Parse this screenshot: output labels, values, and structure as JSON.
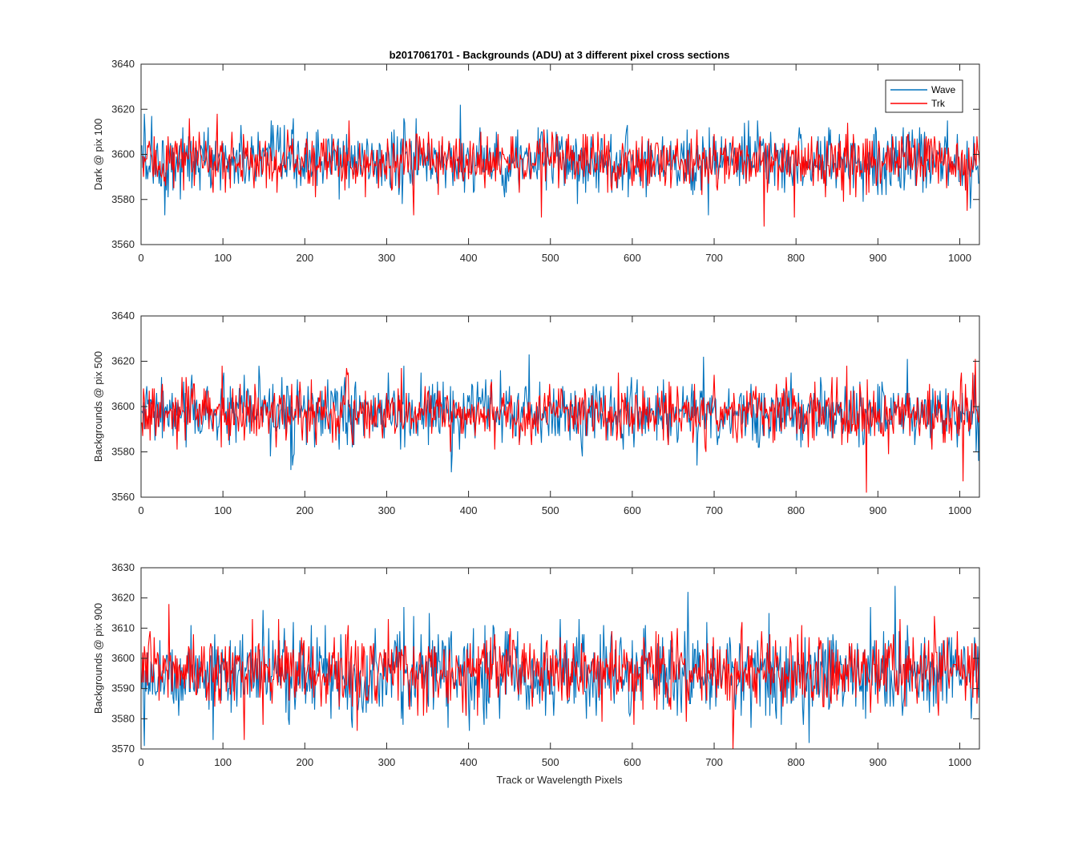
{
  "title": "b2017061701 - Backgrounds (ADU) at 3 different pixel cross sections",
  "xlabel": "Track or Wavelength Pixels",
  "colors": {
    "wave": "#0072bd",
    "trk": "#ff0000",
    "axes": "#262626"
  },
  "legend": {
    "position": "top-right",
    "entries": [
      "Wave",
      "Trk"
    ]
  },
  "chart_data": [
    {
      "type": "line",
      "title": "b2017061701 - Backgrounds (ADU) at 3 different pixel cross sections",
      "xlabel": "",
      "ylabel": "Dark @ pix 100",
      "xlim": [
        0,
        1024
      ],
      "ylim": [
        3560,
        3640
      ],
      "xticks": [
        0,
        100,
        200,
        300,
        400,
        500,
        600,
        700,
        800,
        900,
        1000
      ],
      "yticks": [
        3560,
        3580,
        3600,
        3620,
        3640
      ],
      "grid": false,
      "legend": "top-right",
      "x": "pixel index 1..1024",
      "series": [
        {
          "name": "Wave",
          "color": "#0072bd",
          "mean": 3597,
          "std": 7,
          "spikes": [
            [
              3,
              3618
            ],
            [
              12,
              3617
            ],
            [
              28,
              3573
            ],
            [
              389,
              3622
            ],
            [
              692,
              3573
            ],
            [
              818,
              3588
            ],
            [
              1012,
              3576
            ]
          ]
        },
        {
          "name": "Trk",
          "color": "#ff0000",
          "mean": 3597,
          "std": 6,
          "spikes": [
            [
              92,
              3618
            ],
            [
              332,
              3573
            ],
            [
              488,
              3572
            ],
            [
              760,
              3568
            ],
            [
              797,
              3572
            ],
            [
              1008,
              3575
            ]
          ]
        }
      ]
    },
    {
      "type": "line",
      "title": "",
      "xlabel": "",
      "ylabel": "Backgrounds @ pix 500",
      "xlim": [
        0,
        1024
      ],
      "ylim": [
        3560,
        3640
      ],
      "xticks": [
        0,
        100,
        200,
        300,
        400,
        500,
        600,
        700,
        800,
        900,
        1000
      ],
      "yticks": [
        3560,
        3580,
        3600,
        3620,
        3640
      ],
      "grid": false,
      "x": "pixel index 1..1024",
      "series": [
        {
          "name": "Wave",
          "color": "#0072bd",
          "mean": 3597,
          "std": 7,
          "spikes": [
            [
              182,
              3572
            ],
            [
              378,
              3571
            ],
            [
              686,
              3622
            ],
            [
              1022,
              3576
            ]
          ]
        },
        {
          "name": "Trk",
          "color": "#ff0000",
          "mean": 3597,
          "std": 6,
          "spikes": [
            [
              98,
              3618
            ],
            [
              885,
              3562
            ],
            [
              1003,
              3567
            ],
            [
              1018,
              3621
            ]
          ]
        }
      ]
    },
    {
      "type": "line",
      "title": "",
      "xlabel": "Track or Wavelength Pixels",
      "ylabel": "Backgrounds @ pix 900",
      "xlim": [
        0,
        1024
      ],
      "ylim": [
        3570,
        3630
      ],
      "xticks": [
        0,
        100,
        200,
        300,
        400,
        500,
        600,
        700,
        800,
        900,
        1000
      ],
      "yticks": [
        3570,
        3580,
        3590,
        3600,
        3610,
        3620,
        3630
      ],
      "grid": false,
      "x": "pixel index 1..1024",
      "series": [
        {
          "name": "Wave",
          "color": "#0072bd",
          "mean": 3595,
          "std": 7,
          "spikes": [
            [
              87,
              3573
            ],
            [
              667,
              3622
            ],
            [
              920,
              3624
            ]
          ]
        },
        {
          "name": "Trk",
          "color": "#ff0000",
          "mean": 3596,
          "std": 6,
          "spikes": [
            [
              33,
              3618
            ],
            [
              125,
              3573
            ],
            [
              722,
              3570
            ]
          ]
        }
      ]
    }
  ]
}
